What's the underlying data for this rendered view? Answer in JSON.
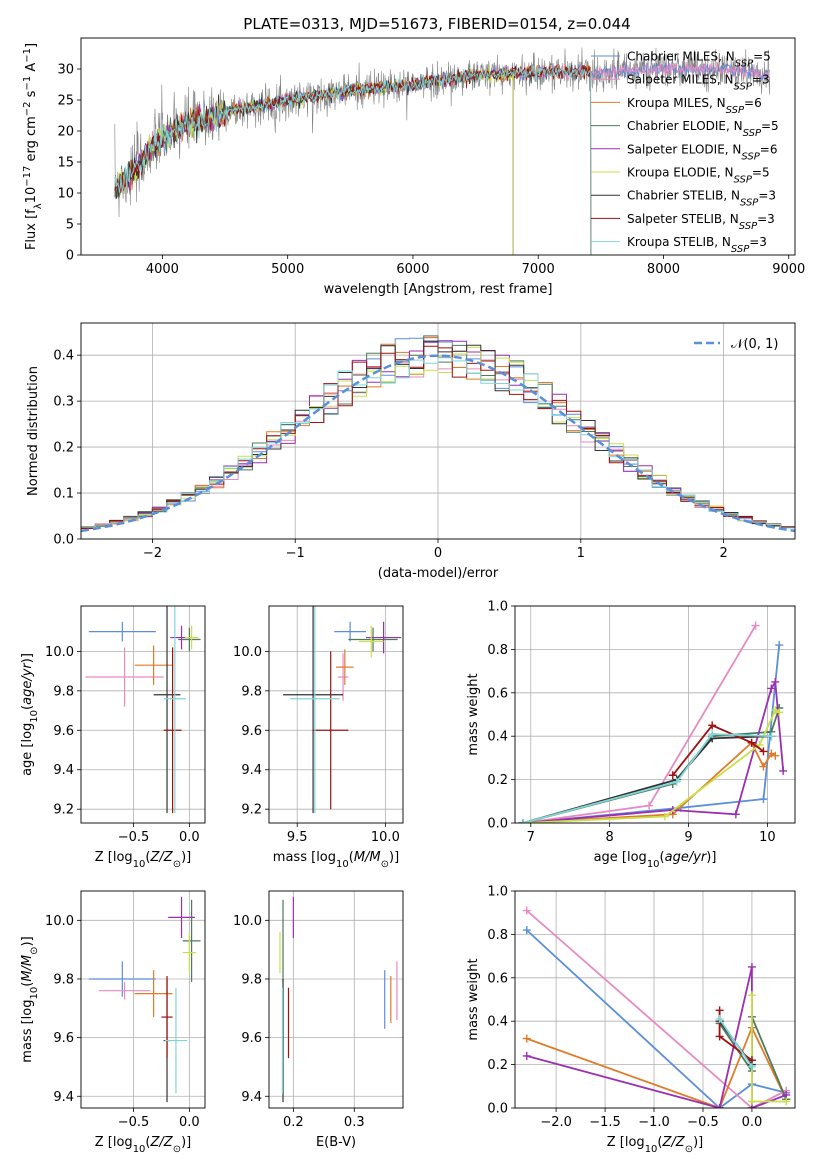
{
  "figure_title": "PLATE=0313, MJD=51673, FIBERID=0154, z=0.044",
  "models": [
    {
      "name": "Chabrier MILES",
      "nssp": 5,
      "color": "#5b8fd9"
    },
    {
      "name": "Salpeter MILES",
      "nssp": 3,
      "color": "#e68ac4"
    },
    {
      "name": "Kroupa MILES",
      "nssp": 6,
      "color": "#e07b28"
    },
    {
      "name": "Chabrier ELODIE",
      "nssp": 5,
      "color": "#4d7a5a"
    },
    {
      "name": "Salpeter ELODIE",
      "nssp": 6,
      "color": "#9b2fb0"
    },
    {
      "name": "Kroupa ELODIE",
      "nssp": 5,
      "color": "#c8e04a"
    },
    {
      "name": "Chabrier STELIB",
      "nssp": 3,
      "color": "#333333"
    },
    {
      "name": "Salpeter STELIB",
      "nssp": 3,
      "color": "#9e1212"
    },
    {
      "name": "Kroupa STELIB",
      "nssp": 3,
      "color": "#7fd6d8"
    }
  ],
  "chart_data": [
    {
      "id": "spectrum",
      "type": "line",
      "xlabel": "wavelength [Angstrom, rest frame]",
      "ylabel": "Flux [f_λ10^-17 erg cm^-2 s^-1 A^-1]",
      "xlim": [
        3350,
        9050
      ],
      "ylim": [
        0,
        35
      ],
      "xticks": [
        4000,
        5000,
        6000,
        7000,
        8000,
        9000
      ],
      "yticks": [
        0,
        5,
        10,
        15,
        20,
        25,
        30
      ],
      "data_color": "#808080",
      "continuum": [
        [
          3620,
          11
        ],
        [
          3700,
          12
        ],
        [
          3800,
          14
        ],
        [
          3900,
          17
        ],
        [
          4000,
          19
        ],
        [
          4200,
          21
        ],
        [
          4500,
          23
        ],
        [
          5000,
          25
        ],
        [
          5500,
          26.5
        ],
        [
          6000,
          27.5
        ],
        [
          6500,
          29
        ],
        [
          7000,
          29.5
        ],
        [
          7500,
          29.5
        ],
        [
          8000,
          30
        ],
        [
          8500,
          30
        ],
        [
          8850,
          29
        ]
      ],
      "model_ranges": {
        "Kroupa ELODIE": [
          3620,
          6800
        ],
        "Chabrier ELODIE": [
          3620,
          6800
        ],
        "Salpeter ELODIE": [
          3620,
          6800
        ],
        "Chabrier STELIB": [
          3620,
          7420
        ],
        "Salpeter STELIB": [
          3620,
          7420
        ],
        "Kroupa STELIB": [
          3620,
          7420
        ],
        "Chabrier MILES": [
          3620,
          8850
        ],
        "Salpeter MILES": [
          3620,
          8850
        ],
        "Kroupa MILES": [
          3620,
          7420
        ]
      },
      "legend_position": "upper right",
      "grid": false
    },
    {
      "id": "residuals",
      "type": "histogram",
      "xlabel": "(data-model)/error",
      "ylabel": "Normed distribution",
      "xlim": [
        -2.5,
        2.5
      ],
      "ylim": [
        0,
        0.47
      ],
      "xticks": [
        -2,
        -1,
        0,
        1,
        2
      ],
      "yticks": [
        0.0,
        0.1,
        0.2,
        0.3,
        0.4
      ],
      "reference_label": "N(0,1)",
      "reference_color": "#5b8fd9",
      "legend_position": "upper right",
      "grid": true
    },
    {
      "id": "age_vs_Z",
      "type": "errorbar",
      "xlabel": "Z [log10(Z/Z⊙)]",
      "ylabel": "age  [log10(age/yr)]",
      "xlim": [
        -0.97,
        0.14
      ],
      "ylim": [
        9.13,
        10.23
      ],
      "xticks": [
        -0.5,
        0.0
      ],
      "yticks": [
        9.2,
        9.4,
        9.6,
        9.8,
        10.0
      ],
      "grid": true,
      "points": [
        {
          "model": "Chabrier MILES",
          "x": -0.6,
          "y": 10.1,
          "xerr": 0.3,
          "yerr": 0.05
        },
        {
          "model": "Salpeter MILES",
          "x": -0.58,
          "y": 9.87,
          "xerr": 0.35,
          "yerr": 0.15
        },
        {
          "model": "Kroupa MILES",
          "x": -0.32,
          "y": 9.93,
          "xerr": 0.17,
          "yerr": 0.1
        },
        {
          "model": "Chabrier ELODIE",
          "x": 0.0,
          "y": 10.06,
          "xerr": 0.1,
          "yerr": 0.06
        },
        {
          "model": "Salpeter ELODIE",
          "x": -0.07,
          "y": 10.07,
          "xerr": 0.1,
          "yerr": 0.06
        },
        {
          "model": "Kroupa ELODIE",
          "x": 0.02,
          "y": 10.07,
          "xerr": 0.06,
          "yerr": 0.06
        },
        {
          "model": "Chabrier STELIB",
          "x": -0.2,
          "y": 9.78,
          "xerr": 0.12,
          "yerr": 0.6
        },
        {
          "model": "Salpeter STELIB",
          "x": -0.15,
          "y": 9.6,
          "xerr": 0.08,
          "yerr": 0.42
        },
        {
          "model": "Kroupa STELIB",
          "x": -0.13,
          "y": 9.76,
          "xerr": 0.1,
          "yerr": 0.58
        }
      ]
    },
    {
      "id": "age_vs_mass",
      "type": "errorbar",
      "xlabel": "mass [log10(M/M⊙)]",
      "ylabel": "",
      "xlim": [
        9.34,
        10.1
      ],
      "ylim": [
        9.13,
        10.23
      ],
      "xticks": [
        9.5,
        10.0
      ],
      "yticks": [
        9.2,
        9.4,
        9.6,
        9.8,
        10.0
      ],
      "grid": true,
      "points": [
        {
          "model": "Chabrier MILES",
          "x": 9.8,
          "y": 10.1,
          "xerr": 0.09,
          "yerr": 0.05
        },
        {
          "model": "Salpeter MILES",
          "x": 9.76,
          "y": 9.87,
          "xerr": 0.03,
          "yerr": 0.12
        },
        {
          "model": "Kroupa MILES",
          "x": 9.77,
          "y": 9.92,
          "xerr": 0.05,
          "yerr": 0.09
        },
        {
          "model": "Chabrier ELODIE",
          "x": 9.93,
          "y": 10.06,
          "xerr": 0.14,
          "yerr": 0.06
        },
        {
          "model": "Salpeter ELODIE",
          "x": 9.99,
          "y": 10.07,
          "xerr": 0.1,
          "yerr": 0.08
        },
        {
          "model": "Kroupa ELODIE",
          "x": 9.92,
          "y": 10.05,
          "xerr": 0.07,
          "yerr": 0.08
        },
        {
          "model": "Chabrier STELIB",
          "x": 9.59,
          "y": 9.78,
          "xerr": 0.17,
          "yerr": 0.6
        },
        {
          "model": "Salpeter STELIB",
          "x": 9.69,
          "y": 9.6,
          "xerr": 0.1,
          "yerr": 0.4
        },
        {
          "model": "Kroupa STELIB",
          "x": 9.6,
          "y": 9.76,
          "xerr": 0.14,
          "yerr": 0.58
        }
      ]
    },
    {
      "id": "massweight_vs_age",
      "type": "line",
      "xlabel": "age  [log10(age/yr)]",
      "ylabel": "mass weight",
      "xlim": [
        6.8,
        10.35
      ],
      "ylim": [
        0,
        1.0
      ],
      "xticks": [
        7,
        8,
        9,
        10
      ],
      "yticks": [
        0.0,
        0.2,
        0.4,
        0.6,
        0.8,
        1.0
      ],
      "grid": true,
      "series": [
        {
          "model": "Chabrier MILES",
          "x": [
            6.9,
            8.9,
            9.95,
            10.15
          ],
          "y": [
            0.0,
            0.07,
            0.11,
            0.82
          ]
        },
        {
          "model": "Salpeter MILES",
          "x": [
            6.9,
            8.5,
            9.85
          ],
          "y": [
            0.0,
            0.08,
            0.91
          ]
        },
        {
          "model": "Kroupa MILES",
          "x": [
            6.9,
            8.8,
            9.8,
            9.95,
            10.05,
            10.1
          ],
          "y": [
            0.0,
            0.04,
            0.37,
            0.26,
            0.32,
            0.31
          ]
        },
        {
          "model": "Chabrier ELODIE",
          "x": [
            6.9,
            8.8,
            9.3,
            10.05,
            10.15
          ],
          "y": [
            0.0,
            0.18,
            0.4,
            0.42,
            0.53
          ]
        },
        {
          "model": "Salpeter ELODIE",
          "x": [
            6.9,
            8.8,
            9.6,
            10.05,
            10.1,
            10.2
          ],
          "y": [
            0.0,
            0.06,
            0.04,
            0.62,
            0.65,
            0.24
          ]
        },
        {
          "model": "Kroupa ELODIE",
          "x": [
            6.9,
            8.7,
            9.9,
            10.1,
            10.15
          ],
          "y": [
            0.0,
            0.03,
            0.36,
            0.52,
            0.51
          ]
        },
        {
          "model": "Chabrier STELIB",
          "x": [
            6.9,
            8.85,
            9.3,
            10.05
          ],
          "y": [
            0.0,
            0.2,
            0.39,
            0.4
          ]
        },
        {
          "model": "Salpeter STELIB",
          "x": [
            8.8,
            9.3,
            9.8,
            9.95
          ],
          "y": [
            0.22,
            0.45,
            0.37,
            0.33
          ]
        },
        {
          "model": "Kroupa STELIB",
          "x": [
            6.9,
            8.85,
            9.3,
            10.05
          ],
          "y": [
            0.0,
            0.19,
            0.41,
            0.4
          ]
        }
      ]
    },
    {
      "id": "mass_vs_Z",
      "type": "errorbar",
      "xlabel": "Z [log10(Z/Z⊙)]",
      "ylabel": "mass [log10(M/M⊙)]",
      "xlim": [
        -0.97,
        0.14
      ],
      "ylim": [
        9.36,
        10.1
      ],
      "xticks": [
        -0.5,
        0.0
      ],
      "yticks": [
        9.4,
        9.6,
        9.8,
        10.0
      ],
      "grid": true,
      "points": [
        {
          "model": "Chabrier MILES",
          "x": -0.6,
          "y": 9.8,
          "xerr": 0.3,
          "yerr": 0.06
        },
        {
          "model": "Salpeter MILES",
          "x": -0.58,
          "y": 9.76,
          "xerr": 0.23,
          "yerr": 0.03
        },
        {
          "model": "Kroupa MILES",
          "x": -0.32,
          "y": 9.75,
          "xerr": 0.17,
          "yerr": 0.08
        },
        {
          "model": "Chabrier ELODIE",
          "x": 0.02,
          "y": 9.93,
          "xerr": 0.08,
          "yerr": 0.14
        },
        {
          "model": "Salpeter ELODIE",
          "x": -0.07,
          "y": 10.01,
          "xerr": 0.12,
          "yerr": 0.07
        },
        {
          "model": "Kroupa ELODIE",
          "x": 0.0,
          "y": 9.89,
          "xerr": 0.06,
          "yerr": 0.07
        },
        {
          "model": "Chabrier STELIB",
          "x": -0.2,
          "y": 9.59,
          "xerr": 0.03,
          "yerr": 0.21
        },
        {
          "model": "Salpeter STELIB",
          "x": -0.2,
          "y": 9.67,
          "xerr": 0.05,
          "yerr": 0.14
        },
        {
          "model": "Kroupa STELIB",
          "x": -0.12,
          "y": 9.59,
          "xerr": 0.1,
          "yerr": 0.18
        }
      ]
    },
    {
      "id": "mass_vs_EBV",
      "type": "errorbar",
      "xlabel": "E(B-V)",
      "ylabel": "",
      "xlim": [
        0.16,
        0.38
      ],
      "ylim": [
        9.36,
        10.1
      ],
      "xticks": [
        0.2,
        0.3
      ],
      "yticks": [
        9.4,
        9.6,
        9.8,
        10.0
      ],
      "grid": true,
      "points": [
        {
          "model": "Chabrier MILES",
          "x": 0.35,
          "y": 9.73,
          "xerr": 0.0,
          "yerr": 0.1
        },
        {
          "model": "Salpeter MILES",
          "x": 0.37,
          "y": 9.76,
          "xerr": 0.0,
          "yerr": 0.1
        },
        {
          "model": "Kroupa MILES",
          "x": 0.36,
          "y": 9.73,
          "xerr": 0.0,
          "yerr": 0.08
        },
        {
          "model": "Chabrier ELODIE",
          "x": 0.183,
          "y": 9.93,
          "xerr": 0.0,
          "yerr": 0.14
        },
        {
          "model": "Salpeter ELODIE",
          "x": 0.2,
          "y": 10.01,
          "xerr": 0.0,
          "yerr": 0.07
        },
        {
          "model": "Kroupa ELODIE",
          "x": 0.178,
          "y": 9.89,
          "xerr": 0.0,
          "yerr": 0.07
        },
        {
          "model": "Chabrier STELIB",
          "x": 0.183,
          "y": 9.59,
          "xerr": 0.0,
          "yerr": 0.21
        },
        {
          "model": "Salpeter STELIB",
          "x": 0.192,
          "y": 9.65,
          "xerr": 0.0,
          "yerr": 0.12
        },
        {
          "model": "Kroupa STELIB",
          "x": 0.182,
          "y": 9.59,
          "xerr": 0.0,
          "yerr": 0.18
        }
      ]
    },
    {
      "id": "massweight_vs_Z",
      "type": "line",
      "xlabel": "Z [log10(Z/Z⊙)]",
      "ylabel": "mass weight",
      "xlim": [
        -2.42,
        0.44
      ],
      "ylim": [
        0,
        1.0
      ],
      "xticks": [
        -2.0,
        -1.5,
        -1.0,
        -0.5,
        0.0
      ],
      "yticks": [
        0.0,
        0.2,
        0.4,
        0.6,
        0.8,
        1.0
      ],
      "grid": true,
      "series": [
        {
          "model": "Chabrier MILES",
          "x": [
            -2.3,
            -0.33,
            0.0,
            0.35
          ],
          "y": [
            0.82,
            0.0,
            0.11,
            0.07
          ]
        },
        {
          "model": "Salpeter MILES",
          "x": [
            -2.3,
            0.0,
            0.35
          ],
          "y": [
            0.91,
            0.0,
            0.08
          ]
        },
        {
          "model": "Kroupa MILES",
          "x": [
            -2.3,
            -0.33,
            0.0,
            0.35
          ],
          "y": [
            0.32,
            0.0,
            0.37,
            0.04
          ]
        },
        {
          "model": "Chabrier ELODIE",
          "x": [
            -0.33,
            0.0,
            0.0,
            0.35
          ],
          "y": [
            0.39,
            0.17,
            0.42,
            0.04
          ]
        },
        {
          "model": "Salpeter ELODIE",
          "x": [
            -2.3,
            -0.33,
            0.0,
            0.0,
            0.35
          ],
          "y": [
            0.24,
            0.0,
            0.65,
            0.0,
            0.06
          ]
        },
        {
          "model": "Kroupa ELODIE",
          "x": [
            0.0,
            0.0,
            0.35
          ],
          "y": [
            0.52,
            0.03,
            0.03
          ]
        },
        {
          "model": "Chabrier STELIB",
          "x": [
            -0.33,
            0.0
          ],
          "y": [
            0.4,
            0.2
          ]
        },
        {
          "model": "Salpeter STELIB",
          "x": [
            -0.33,
            -0.33,
            0.0
          ],
          "y": [
            0.45,
            0.33,
            0.22
          ]
        },
        {
          "model": "Kroupa STELIB",
          "x": [
            -0.33,
            0.0
          ],
          "y": [
            0.41,
            0.19
          ]
        }
      ]
    }
  ]
}
